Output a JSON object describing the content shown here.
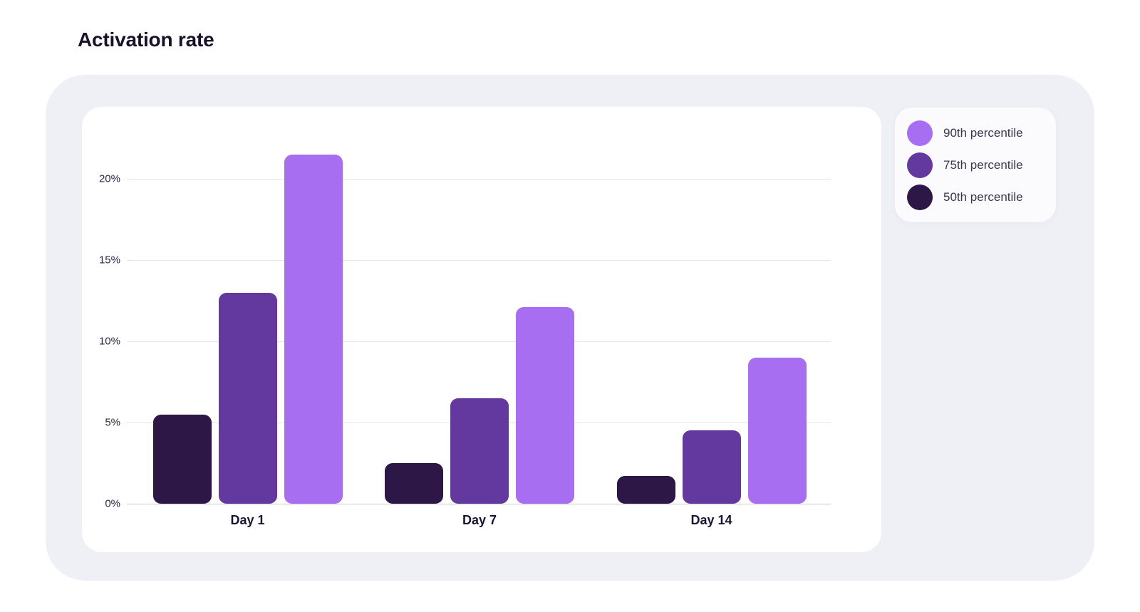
{
  "page": {
    "title": "Activation rate"
  },
  "legend": {
    "items": [
      {
        "label": "90th percentile",
        "color": "#A76EF1"
      },
      {
        "label": "75th percentile",
        "color": "#63399F"
      },
      {
        "label": "50th percentile",
        "color": "#2C1747"
      }
    ]
  },
  "chart_data": {
    "type": "bar",
    "title": "Activation rate",
    "categories": [
      "Day 1",
      "Day 7",
      "Day 14"
    ],
    "series": [
      {
        "name": "50th percentile",
        "color": "#2C1747",
        "values": [
          5.5,
          2.5,
          1.7
        ]
      },
      {
        "name": "75th percentile",
        "color": "#63399F",
        "values": [
          13,
          6.5,
          4.5
        ]
      },
      {
        "name": "90th percentile",
        "color": "#A76EF1",
        "values": [
          21.5,
          12.1,
          9
        ]
      }
    ],
    "xlabel": "",
    "ylabel": "",
    "yticks": [
      0,
      5,
      10,
      15,
      20
    ],
    "ytick_suffix": "%",
    "ylim": [
      0,
      22.5
    ],
    "grid": true,
    "legend_position": "top-right"
  }
}
